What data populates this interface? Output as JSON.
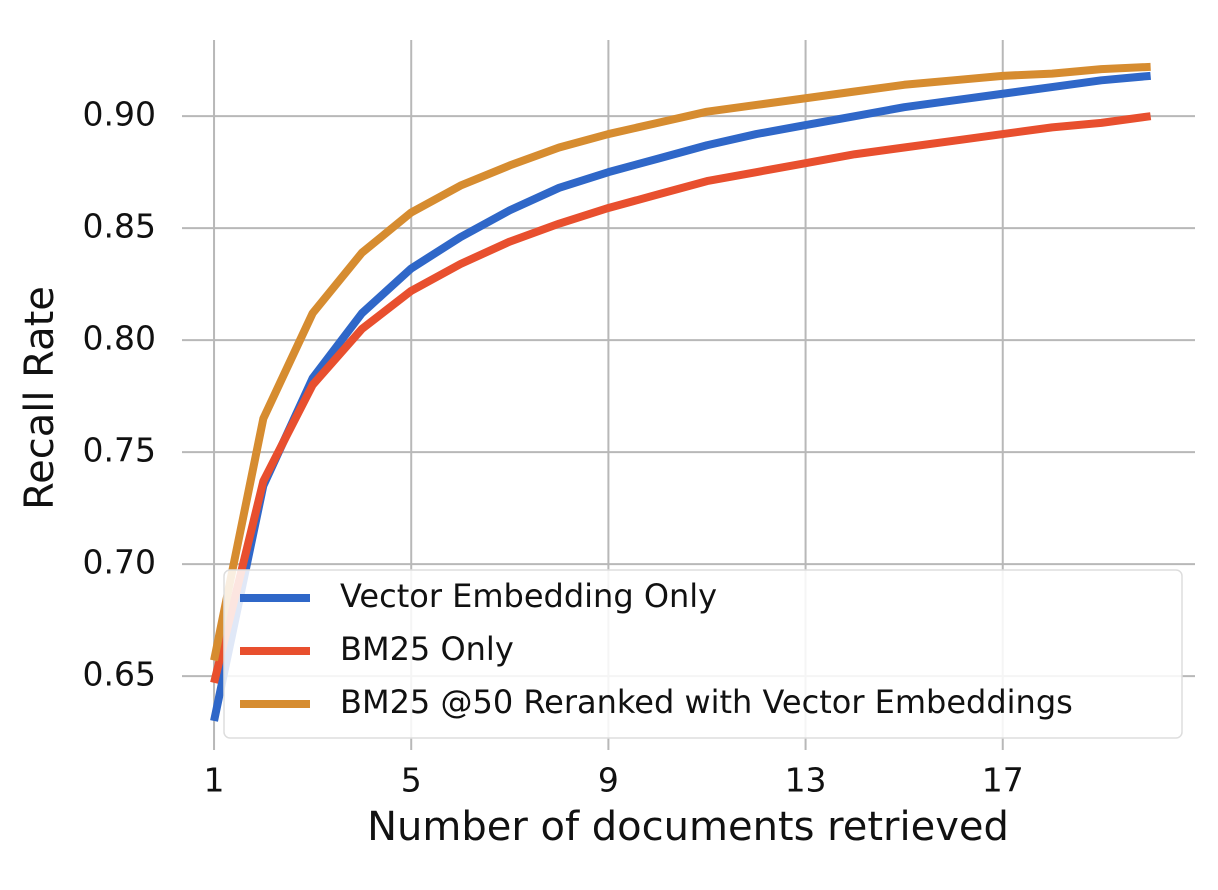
{
  "chart_data": {
    "type": "line",
    "xlabel": "Number of documents retrieved",
    "ylabel": "Recall Rate",
    "x": [
      1,
      2,
      3,
      4,
      5,
      6,
      7,
      8,
      9,
      10,
      11,
      12,
      13,
      14,
      15,
      16,
      17,
      18,
      19,
      20
    ],
    "series": [
      {
        "name": "Vector Embedding Only",
        "color": "#2f67c8",
        "values": [
          0.63,
          0.735,
          0.783,
          0.812,
          0.832,
          0.846,
          0.858,
          0.868,
          0.875,
          0.881,
          0.887,
          0.892,
          0.896,
          0.9,
          0.904,
          0.907,
          0.91,
          0.913,
          0.916,
          0.918
        ]
      },
      {
        "name": "BM25 Only",
        "color": "#e84f2e",
        "values": [
          0.647,
          0.737,
          0.78,
          0.805,
          0.822,
          0.834,
          0.844,
          0.852,
          0.859,
          0.865,
          0.871,
          0.875,
          0.879,
          0.883,
          0.886,
          0.889,
          0.892,
          0.895,
          0.897,
          0.9
        ]
      },
      {
        "name": "BM25 @50 Reranked with Vector Embeddings",
        "color": "#d68c30",
        "values": [
          0.657,
          0.765,
          0.812,
          0.839,
          0.857,
          0.869,
          0.878,
          0.886,
          0.892,
          0.897,
          0.902,
          0.905,
          0.908,
          0.911,
          0.914,
          0.916,
          0.918,
          0.919,
          0.921,
          0.922
        ]
      }
    ],
    "xlim": [
      0.35,
      20.9
    ],
    "ylim": [
      0.617,
      0.934
    ],
    "xticks": [
      1,
      5,
      9,
      13,
      17
    ],
    "yticks": [
      0.65,
      {
        "value": 0.7,
        "label": "0.70"
      },
      0.75,
      {
        "value": 0.8,
        "label": "0.80"
      },
      0.85,
      {
        "value": 0.9,
        "label": "0.90"
      }
    ],
    "grid": true,
    "legend": "lower right"
  }
}
